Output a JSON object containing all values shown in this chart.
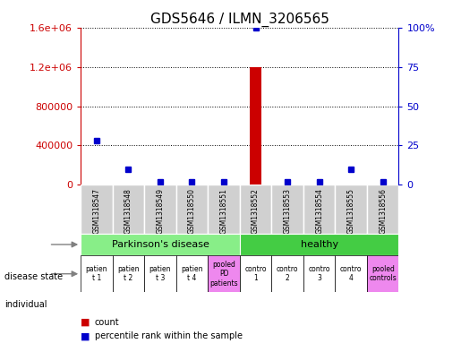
{
  "title": "GDS5646 / ILMN_3206565",
  "samples": [
    "GSM1318547",
    "GSM1318548",
    "GSM1318549",
    "GSM1318550",
    "GSM1318551",
    "GSM1318552",
    "GSM1318553",
    "GSM1318554",
    "GSM1318555",
    "GSM1318556"
  ],
  "count_values": [
    2000,
    3000,
    1000,
    800,
    600,
    1200000,
    600,
    500,
    1500,
    700
  ],
  "percentile_values": [
    28,
    10,
    2,
    2,
    2,
    100,
    2,
    2,
    10,
    2
  ],
  "red_bar_index": 5,
  "ylim_left": [
    0,
    1600000
  ],
  "ylim_right": [
    0,
    100
  ],
  "yticks_left": [
    0,
    400000,
    800000,
    1200000,
    1600000
  ],
  "ytick_labels_left": [
    "0",
    "400000",
    "800000",
    "1.2e+06",
    "1.6e+06"
  ],
  "yticks_right": [
    0,
    25,
    50,
    75,
    100
  ],
  "ytick_labels_right": [
    "0",
    "25",
    "50",
    "75",
    "100%"
  ],
  "parkinsons_label": "Parkinson's disease",
  "parkinsons_color": "#88ee88",
  "healthy_label": "healthy",
  "healthy_color": "#44cc44",
  "individual_labels": [
    "patien\nt 1",
    "patien\nt 2",
    "patien\nt 3",
    "patien\nt 4",
    "pooled\nPD\npatients",
    "contro\n1",
    "contro\n2",
    "contro\n3",
    "contro\n4",
    "pooled\ncontrols"
  ],
  "individual_colors": [
    "#ffffff",
    "#ffffff",
    "#ffffff",
    "#ffffff",
    "#ee88ee",
    "#ffffff",
    "#ffffff",
    "#ffffff",
    "#ffffff",
    "#ee88ee"
  ],
  "sample_bg_color": "#d0d0d0",
  "left_axis_color": "#cc0000",
  "right_axis_color": "#0000cc",
  "count_color": "#cc0000",
  "percentile_color": "#0000cc",
  "background_color": "#ffffff",
  "title_fontsize": 11,
  "axis_fontsize": 8,
  "label_fontsize": 7,
  "sample_fontsize": 5.5,
  "individual_fontsize": 5.5,
  "disease_fontsize": 8
}
